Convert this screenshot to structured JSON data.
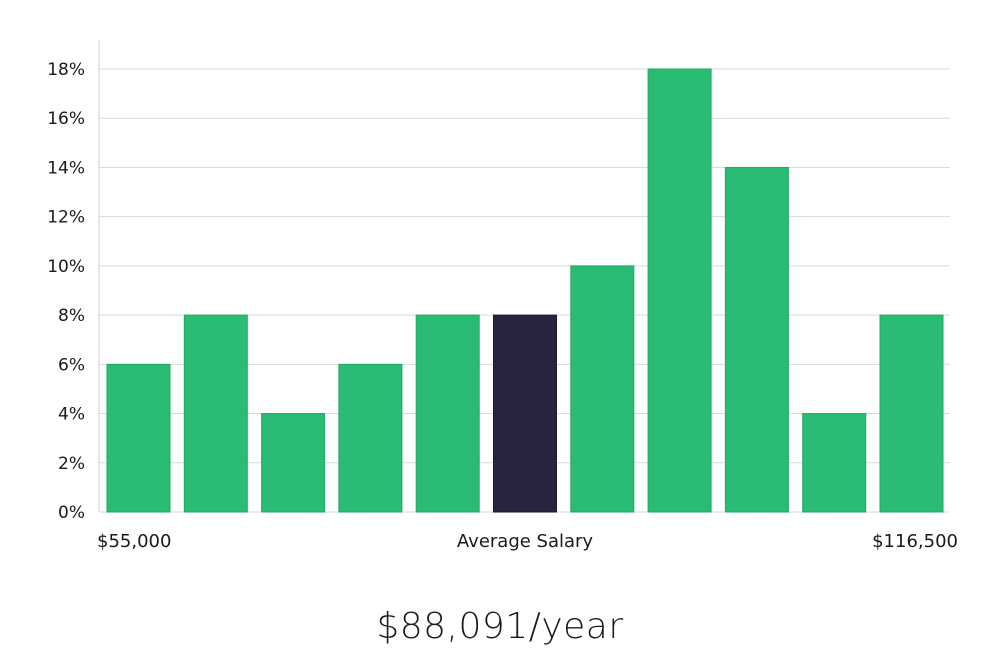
{
  "chart_data": {
    "type": "bar",
    "values": [
      6,
      8,
      4,
      6,
      8,
      8,
      10,
      18,
      14,
      4,
      8
    ],
    "highlight_index": 5,
    "ylim": [
      0,
      18
    ],
    "y_ticks": [
      "0%",
      "2%",
      "4%",
      "6%",
      "8%",
      "10%",
      "12%",
      "14%",
      "16%",
      "18%"
    ],
    "x_left_label": "$55,000",
    "x_center_label": "Average Salary",
    "x_right_label": "$116,500",
    "colors": {
      "bar": "#2abb74",
      "highlight": "#28243f",
      "grid": "#d9d9d9"
    },
    "grid": true
  },
  "summary": {
    "average_salary": "$88,091/year"
  }
}
